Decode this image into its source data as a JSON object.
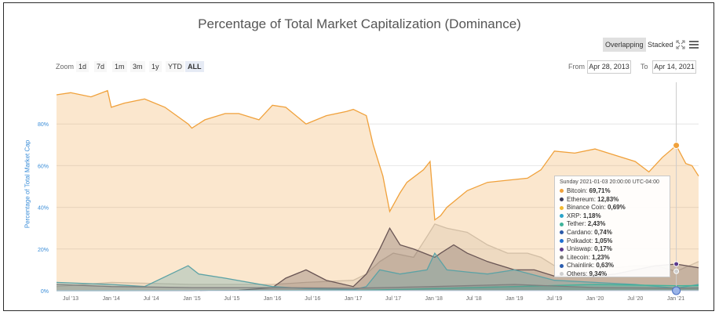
{
  "title": "Percentage of Total Market Capitalization (Dominance)",
  "toolbar": {
    "overlapping_label": "Overlapping",
    "stacked_label": "Stacked",
    "fullscreen_icon": "fullscreen-icon",
    "menu_icon": "hamburger-menu-icon"
  },
  "zoom": {
    "label": "Zoom",
    "buttons": [
      "1d",
      "7d",
      "1m",
      "3m",
      "1y",
      "YTD",
      "ALL"
    ],
    "active": "ALL"
  },
  "range": {
    "from_label": "From",
    "from_value": "Apr 28, 2013",
    "to_label": "To",
    "to_value": "Apr 14, 2021"
  },
  "tooltip": {
    "date": "Sunday 2021-01-03 20:00:00 UTC-04:00",
    "rows": [
      {
        "name": "Bitcoin",
        "value": "69,71%",
        "color": "#f0a13b"
      },
      {
        "name": "Ethereum",
        "value": "12,83%",
        "color": "#3c3c5c"
      },
      {
        "name": "Binance Coin",
        "value": "0,69%",
        "color": "#f3ba2f"
      },
      {
        "name": "XRP",
        "value": "1,18%",
        "color": "#2aa3c9"
      },
      {
        "name": "Tether",
        "value": "2,43%",
        "color": "#3fb39a"
      },
      {
        "name": "Cardano",
        "value": "0,74%",
        "color": "#2b5aa8"
      },
      {
        "name": "Polkadot",
        "value": "1,05%",
        "color": "#1f6fd1"
      },
      {
        "name": "Uniswap",
        "value": "0,17%",
        "color": "#5b3a8c"
      },
      {
        "name": "Litecoin",
        "value": "1,23%",
        "color": "#7f7f7f"
      },
      {
        "name": "Chainlink",
        "value": "0,63%",
        "color": "#2a5cae"
      },
      {
        "name": "Others",
        "value": "9,34%",
        "color": "#cfcfcf"
      }
    ]
  },
  "chart_data": {
    "type": "area",
    "title": "Percentage of Total Market Capitalization (Dominance)",
    "ylabel": "Percentage of Total Market Cap",
    "ylim": [
      0,
      100
    ],
    "yticks": [
      "0%",
      "20%",
      "40%",
      "60%",
      "80%"
    ],
    "ytick_values": [
      0,
      20,
      40,
      60,
      80
    ],
    "xlim": [
      "2013-04-28",
      "2021-04-14"
    ],
    "xticks": [
      {
        "label": "Jul '13",
        "date": "2013-07-01"
      },
      {
        "label": "Jan '14",
        "date": "2014-01-01"
      },
      {
        "label": "Jul '14",
        "date": "2014-07-01"
      },
      {
        "label": "Jan '15",
        "date": "2015-01-01"
      },
      {
        "label": "Jul '15",
        "date": "2015-07-01"
      },
      {
        "label": "Jan '16",
        "date": "2016-01-01"
      },
      {
        "label": "Jul '16",
        "date": "2016-07-01"
      },
      {
        "label": "Jan '17",
        "date": "2017-01-01"
      },
      {
        "label": "Jul '17",
        "date": "2017-07-01"
      },
      {
        "label": "Jan '18",
        "date": "2018-01-01"
      },
      {
        "label": "Jul '18",
        "date": "2018-07-01"
      },
      {
        "label": "Jan '19",
        "date": "2019-01-01"
      },
      {
        "label": "Jul '19",
        "date": "2019-07-01"
      },
      {
        "label": "Jan '20",
        "date": "2020-01-01"
      },
      {
        "label": "Jul '20",
        "date": "2020-07-01"
      },
      {
        "label": "Jan '21",
        "date": "2021-01-01"
      }
    ],
    "grid": true,
    "series": [
      {
        "name": "Others",
        "color": "#c8c8c8",
        "x": [
          "2013-04-28",
          "2014-01-01",
          "2015-01-01",
          "2016-01-01",
          "2016-06-01",
          "2017-01-01",
          "2017-03-01",
          "2017-05-01",
          "2017-07-01",
          "2017-10-01",
          "2017-12-01",
          "2018-01-05",
          "2018-03-01",
          "2018-06-01",
          "2018-09-01",
          "2018-12-01",
          "2019-03-01",
          "2019-05-01",
          "2019-07-01",
          "2019-10-01",
          "2020-01-01",
          "2020-04-01",
          "2020-07-01",
          "2020-10-01",
          "2021-01-03",
          "2021-04-14"
        ],
        "y": [
          2,
          4,
          3,
          3,
          4,
          5,
          8,
          14,
          18,
          16,
          26,
          32,
          30,
          28,
          22,
          18,
          18,
          16,
          12,
          14,
          12,
          11,
          12,
          12,
          9.3,
          14
        ]
      },
      {
        "name": "Ethereum",
        "color": "#3c3c5c",
        "x": [
          "2013-04-28",
          "2014-01-01",
          "2015-01-01",
          "2015-08-01",
          "2016-01-01",
          "2016-03-01",
          "2016-06-01",
          "2016-09-01",
          "2017-01-01",
          "2017-03-01",
          "2017-05-01",
          "2017-06-15",
          "2017-08-01",
          "2017-10-01",
          "2018-01-05",
          "2018-02-01",
          "2018-04-01",
          "2018-06-01",
          "2018-09-01",
          "2019-01-01",
          "2019-04-01",
          "2019-07-01",
          "2019-10-01",
          "2020-01-01",
          "2020-04-01",
          "2020-07-01",
          "2020-10-01",
          "2021-01-03",
          "2021-04-14"
        ],
        "y": [
          0,
          0,
          0,
          0.2,
          1.5,
          6,
          10,
          5,
          2,
          8,
          20,
          30,
          22,
          20,
          16,
          18,
          22,
          18,
          14,
          10,
          10,
          7,
          8,
          7,
          8,
          10,
          12,
          12.8,
          11
        ]
      },
      {
        "name": "XRP",
        "color": "#2aa3c9",
        "x": [
          "2013-04-28",
          "2014-01-01",
          "2014-06-01",
          "2014-12-15",
          "2015-02-01",
          "2015-06-01",
          "2016-01-01",
          "2016-06-01",
          "2017-01-01",
          "2017-03-01",
          "2017-05-01",
          "2017-08-01",
          "2017-12-01",
          "2018-01-05",
          "2018-03-01",
          "2018-06-01",
          "2018-09-01",
          "2019-01-01",
          "2019-07-01",
          "2020-01-01",
          "2020-07-01",
          "2021-01-03",
          "2021-04-14"
        ],
        "y": [
          4,
          3,
          2,
          12,
          8,
          6,
          2,
          1,
          0.5,
          2,
          10,
          8,
          10,
          18,
          10,
          9,
          8,
          10,
          5,
          4,
          3,
          1.2,
          3
        ]
      },
      {
        "name": "Bitcoin",
        "color": "#f0a13b",
        "x": [
          "2013-04-28",
          "2013-07-01",
          "2013-10-01",
          "2013-12-15",
          "2014-01-01",
          "2014-03-01",
          "2014-06-01",
          "2014-09-01",
          "2014-12-15",
          "2015-01-01",
          "2015-03-01",
          "2015-06-01",
          "2015-08-01",
          "2015-11-01",
          "2016-01-01",
          "2016-03-01",
          "2016-06-01",
          "2016-09-01",
          "2016-12-01",
          "2017-01-01",
          "2017-03-01",
          "2017-04-01",
          "2017-05-15",
          "2017-06-15",
          "2017-08-01",
          "2017-09-01",
          "2017-11-15",
          "2017-12-15",
          "2018-01-05",
          "2018-02-01",
          "2018-03-01",
          "2018-06-01",
          "2018-09-01",
          "2018-12-01",
          "2019-03-01",
          "2019-05-01",
          "2019-07-01",
          "2019-10-01",
          "2020-01-01",
          "2020-04-01",
          "2020-07-01",
          "2020-09-01",
          "2020-11-01",
          "2021-01-03",
          "2021-02-15",
          "2021-03-15",
          "2021-04-14"
        ],
        "y": [
          94,
          95,
          93,
          96,
          88,
          90,
          92,
          88,
          80,
          78,
          82,
          85,
          85,
          82,
          89,
          88,
          80,
          84,
          86,
          87,
          84,
          70,
          55,
          38,
          47,
          52,
          58,
          62,
          34,
          36,
          40,
          48,
          52,
          53,
          54,
          58,
          67,
          66,
          68,
          65,
          62,
          57,
          64,
          69.7,
          61,
          60,
          55
        ]
      },
      {
        "name": "Tether",
        "color": "#3fb39a",
        "x": [
          "2013-04-28",
          "2017-01-01",
          "2018-01-01",
          "2019-01-01",
          "2020-01-01",
          "2021-01-03",
          "2021-04-14"
        ],
        "y": [
          0,
          0.1,
          1,
          2,
          3,
          2.4,
          2.5
        ]
      },
      {
        "name": "Litecoin",
        "color": "#7f7f7f",
        "x": [
          "2013-04-28",
          "2014-01-01",
          "2015-01-01",
          "2016-01-01",
          "2017-01-01",
          "2018-01-01",
          "2019-01-01",
          "2020-01-01",
          "2021-01-03",
          "2021-04-14"
        ],
        "y": [
          3,
          2,
          1.5,
          1.5,
          1.2,
          2,
          3,
          1.5,
          1.2,
          1.3
        ]
      }
    ],
    "highlight_point": {
      "series": "Bitcoin",
      "date": "2021-01-03",
      "value": 69.71
    }
  }
}
